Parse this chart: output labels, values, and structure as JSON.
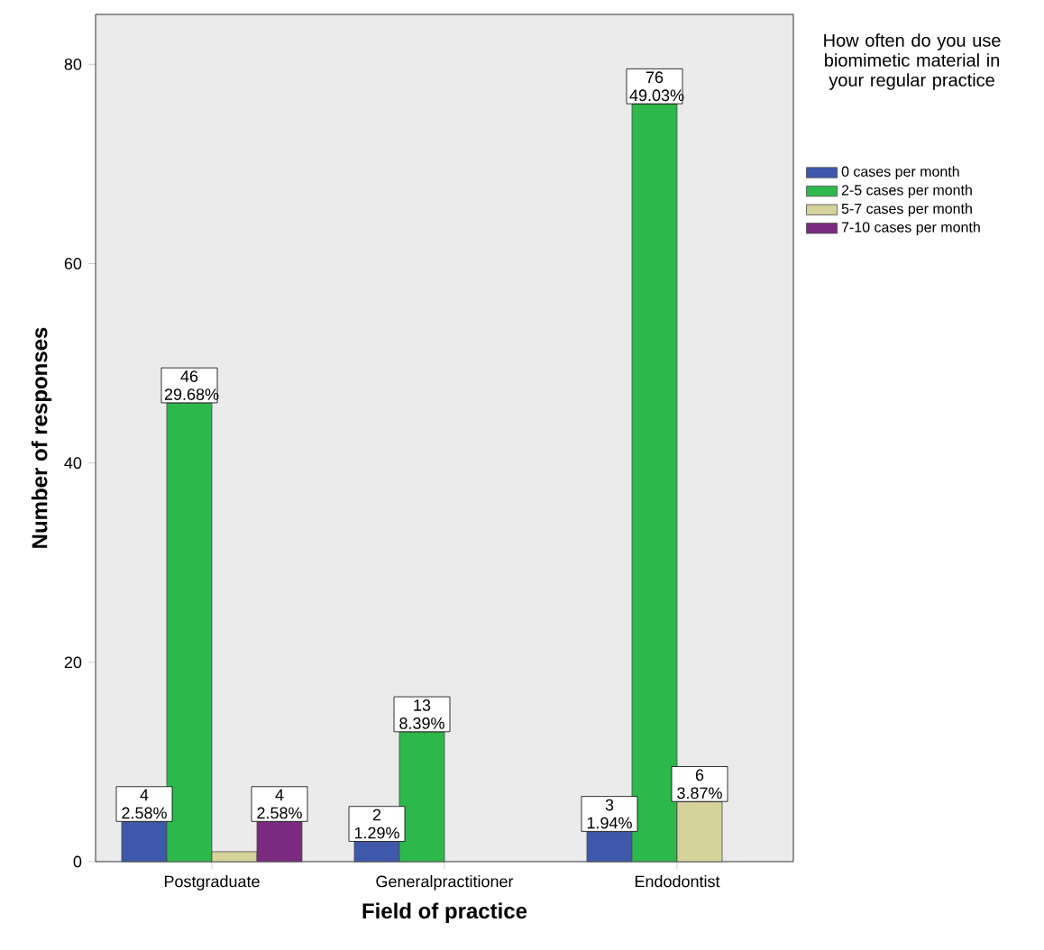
{
  "chart_data": {
    "type": "bar",
    "xlabel": "Field of practice",
    "ylabel": "Number of responses",
    "legend_title": "How often do you use biomimetic material in your regular practice",
    "categories": [
      "Postgraduate",
      "Generalpractitioner",
      "Endodontist"
    ],
    "series": [
      {
        "name": "0 cases per month",
        "color": "#3e58ac",
        "values": [
          4,
          2,
          3
        ],
        "value_labels": [
          "4 2.58%",
          "2 1.29%",
          "3 1.94%"
        ]
      },
      {
        "name": "2-5 cases per month",
        "color": "#2db84b",
        "values": [
          46,
          13,
          76
        ],
        "value_labels": [
          "46 29.68%",
          "13 8.39%",
          "76 49.03%"
        ]
      },
      {
        "name": "5-7 cases per month",
        "color": "#d6d29b",
        "values": [
          1,
          null,
          6
        ],
        "value_labels": [
          null,
          null,
          "6 3.87%"
        ]
      },
      {
        "name": "7-10 cases per month",
        "color": "#7a2a7f",
        "values": [
          4,
          null,
          null
        ],
        "value_labels": [
          "4 2.58%",
          null,
          null
        ]
      }
    ],
    "ylim": [
      0,
      85
    ],
    "yticks": [
      0,
      20,
      40,
      60,
      80
    ],
    "grid": false,
    "legend": "right"
  }
}
